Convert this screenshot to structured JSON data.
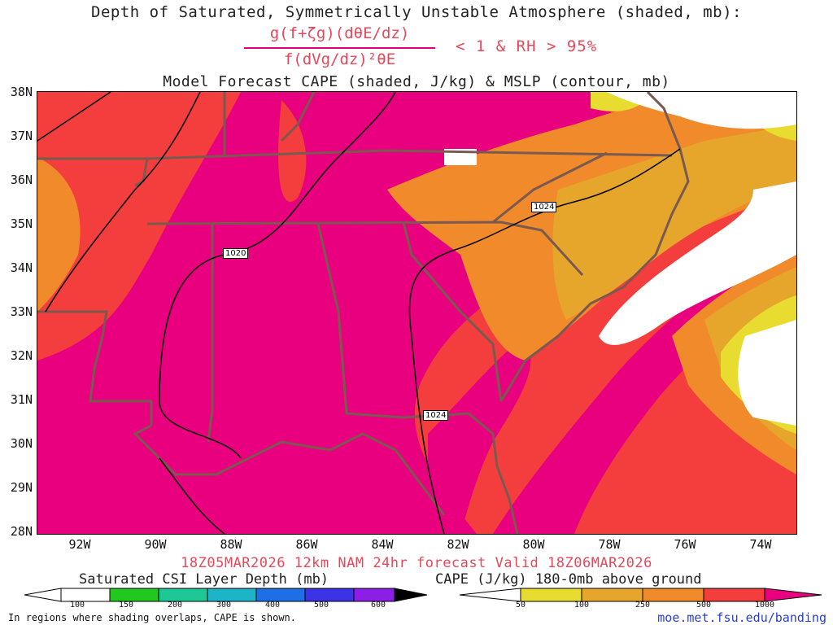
{
  "header": {
    "title": "Depth of Saturated, Symmetrically Unstable Atmosphere (shaded, mb):",
    "formula_numerator": "g(f+ζg)(dθE/dz)",
    "formula_denominator": "f(dVg/dz)²θE",
    "formula_condition": "< 1 & RH > 95%",
    "subtitle": "Model Forecast CAPE (shaded, J/kg) & MSLP (contour, mb)"
  },
  "map": {
    "lat_labels": [
      "38N",
      "37N",
      "36N",
      "35N",
      "34N",
      "33N",
      "32N",
      "31N",
      "30N",
      "29N",
      "28N"
    ],
    "lon_labels": [
      "92W",
      "90W",
      "88W",
      "86W",
      "84W",
      "82W",
      "80W",
      "78W",
      "76W",
      "74W"
    ],
    "contour_labels": [
      "1024",
      "1020",
      "1024"
    ],
    "colors": {
      "cape_max": "#e8007e",
      "cape_500": "#f43e3e",
      "cape_250": "#f08a2a",
      "cape_100": "#e6a62c",
      "cape_50": "#e8dc30",
      "state_lines": "#7a5a50"
    }
  },
  "footer": {
    "valid_line": "18Z05MAR2026 12km NAM 24hr forecast Valid 18Z06MAR2026",
    "csi_legend_title": "Saturated CSI Layer Depth (mb)",
    "csi_ticks": [
      "100",
      "150",
      "200",
      "300",
      "400",
      "500",
      "600"
    ],
    "csi_colors": [
      "#ffffff",
      "#22c81e",
      "#1ec896",
      "#1eb4c8",
      "#1e6ee6",
      "#3c32e6",
      "#8c1ee6",
      "#000000"
    ],
    "cape_legend_title": "CAPE (J/kg) 180-0mb above ground",
    "cape_ticks": [
      "50",
      "100",
      "250",
      "500",
      "1000"
    ],
    "cape_colors": [
      "#ffffff",
      "#e8dc30",
      "#e6a62c",
      "#f08a2a",
      "#f43e3e",
      "#e8007e"
    ],
    "note": "In regions where shading overlaps, CAPE is shown.",
    "url": "moe.met.fsu.edu/banding"
  }
}
